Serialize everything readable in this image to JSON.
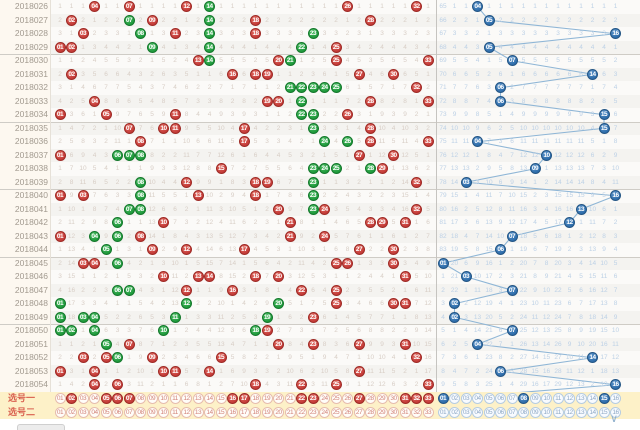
{
  "app": {
    "title": "彩票走势图",
    "kind": "ssq-trend-chart"
  },
  "colors": {
    "red_ball": "#c43b38",
    "green_ball": "#1f9a3c",
    "blue_ball": "#2e6dab",
    "miss_red_zone": "#d8cec6",
    "miss_blue_zone": "#bdd1e6",
    "selection_bg": "#fdf1c8",
    "label_col_bg": "#fdf8f0",
    "zigzag_line": "#8fb6d6",
    "selection_label": "#d9604f"
  },
  "chart": {
    "red_range": [
      1,
      33
    ],
    "blue_range": [
      1,
      16
    ],
    "blue1_initial_miss": 64,
    "rows": [
      {
        "period": "2018026",
        "reds": [
          4,
          7,
          12,
          14,
          26,
          32
        ],
        "greens": [
          14
        ],
        "blue": 4
      },
      {
        "period": "2018027",
        "reds": [
          2,
          7,
          9,
          14,
          18,
          28
        ],
        "greens": [
          7,
          14
        ],
        "blue": 5
      },
      {
        "period": "2018028",
        "reds": [
          3,
          8,
          11,
          14,
          18,
          23
        ],
        "greens": [
          8,
          14,
          23
        ],
        "blue": 16
      },
      {
        "period": "2018029",
        "reds": [
          1,
          2,
          9,
          14,
          22,
          25
        ],
        "greens": [
          9,
          14,
          22
        ],
        "blue": 5
      },
      {
        "period": "2018030",
        "reds": [
          13,
          14,
          20,
          21,
          25,
          33
        ],
        "greens": [
          14,
          21
        ],
        "blue": 7
      },
      {
        "period": "2018031",
        "reds": [
          2,
          16,
          18,
          19,
          27,
          30
        ],
        "greens": [],
        "blue": 14
      },
      {
        "period": "2018032",
        "reds": [
          21,
          22,
          23,
          24,
          25,
          32
        ],
        "greens": [
          21,
          22,
          23,
          24,
          25
        ],
        "blue": 6
      },
      {
        "period": "2018033",
        "reds": [
          4,
          19,
          20,
          22,
          28,
          33
        ],
        "greens": [
          22
        ],
        "blue": 6
      },
      {
        "period": "2018034",
        "reds": [
          1,
          5,
          11,
          22,
          23,
          26
        ],
        "greens": [
          22,
          23
        ],
        "blue": 15
      },
      {
        "period": "2018035",
        "reds": [
          7,
          10,
          11,
          17,
          23,
          28
        ],
        "greens": [
          23
        ],
        "blue": 15
      },
      {
        "period": "2018036",
        "reds": [
          8,
          17,
          24,
          26,
          28,
          33
        ],
        "greens": [
          24,
          26
        ],
        "blue": 4
      },
      {
        "period": "2018037",
        "reds": [
          1,
          6,
          7,
          8,
          27,
          30
        ],
        "greens": [
          6,
          7,
          8
        ],
        "blue": 10
      },
      {
        "period": "2018038",
        "reds": [
          15,
          23,
          24,
          25,
          28,
          29
        ],
        "greens": [
          23,
          24,
          25,
          28
        ],
        "blue": 9
      },
      {
        "period": "2018039",
        "reds": [
          8,
          12,
          18,
          19,
          23,
          32
        ],
        "greens": [
          8,
          23
        ],
        "blue": 3
      },
      {
        "period": "2018040",
        "reds": [
          1,
          3,
          8,
          13,
          18,
          23
        ],
        "greens": [
          8,
          23
        ],
        "blue": 16
      },
      {
        "period": "2018041",
        "reds": [
          7,
          8,
          20,
          23,
          24,
          32
        ],
        "greens": [
          7,
          8,
          23
        ],
        "blue": 13
      },
      {
        "period": "2018042",
        "reds": [
          6,
          10,
          21,
          28,
          29,
          31
        ],
        "greens": [
          6
        ],
        "blue": 12
      },
      {
        "period": "2018043",
        "reds": [
          1,
          4,
          6,
          8,
          21,
          24
        ],
        "greens": [
          4,
          6
        ],
        "blue": 7
      },
      {
        "period": "2018044",
        "reds": [
          5,
          9,
          12,
          17,
          27,
          30
        ],
        "greens": [
          5
        ],
        "blue": 6
      },
      {
        "period": "2018045",
        "reds": [
          3,
          4,
          6,
          25,
          26,
          30
        ],
        "greens": [
          6
        ],
        "blue": 1
      },
      {
        "period": "2018046",
        "reds": [
          10,
          13,
          14,
          18,
          20,
          31
        ],
        "greens": [],
        "blue": 3
      },
      {
        "period": "2018047",
        "reds": [
          6,
          7,
          12,
          16,
          22,
          25
        ],
        "greens": [
          6,
          7
        ],
        "blue": 7
      },
      {
        "period": "2018048",
        "reds": [
          1,
          12,
          20,
          25,
          30,
          31
        ],
        "greens": [
          1,
          12,
          20
        ],
        "blue": 2
      },
      {
        "period": "2018049",
        "reds": [
          1,
          3,
          4,
          11,
          19,
          23
        ],
        "greens": [
          1,
          3,
          4,
          11,
          19
        ],
        "blue": 2
      },
      {
        "period": "2018050",
        "reds": [
          1,
          2,
          4,
          10,
          18,
          19
        ],
        "greens": [
          1,
          2,
          4,
          10,
          18
        ],
        "blue": 7
      },
      {
        "period": "2018051",
        "reds": [
          5,
          7,
          20,
          23,
          27,
          31
        ],
        "greens": [
          5
        ],
        "blue": 4
      },
      {
        "period": "2018052",
        "reds": [
          3,
          5,
          6,
          9,
          15,
          32
        ],
        "greens": [
          6
        ],
        "blue": 14
      },
      {
        "period": "2018053",
        "reds": [
          1,
          4,
          10,
          11,
          14,
          27
        ],
        "greens": [],
        "blue": 6
      },
      {
        "period": "2018054",
        "reds": [
          4,
          6,
          18,
          22,
          25,
          33
        ],
        "greens": [],
        "blue": 16
      }
    ],
    "selection_rows": [
      {
        "label": "选号一",
        "red_selected": [
          2,
          5,
          6,
          7,
          16,
          17,
          22,
          23,
          27,
          31,
          32,
          33
        ],
        "blue_selected": [
          1,
          8,
          15
        ]
      },
      {
        "label": "选号二",
        "red_selected": [],
        "blue_selected": []
      }
    ]
  },
  "footer": {
    "chevron": "∨"
  }
}
